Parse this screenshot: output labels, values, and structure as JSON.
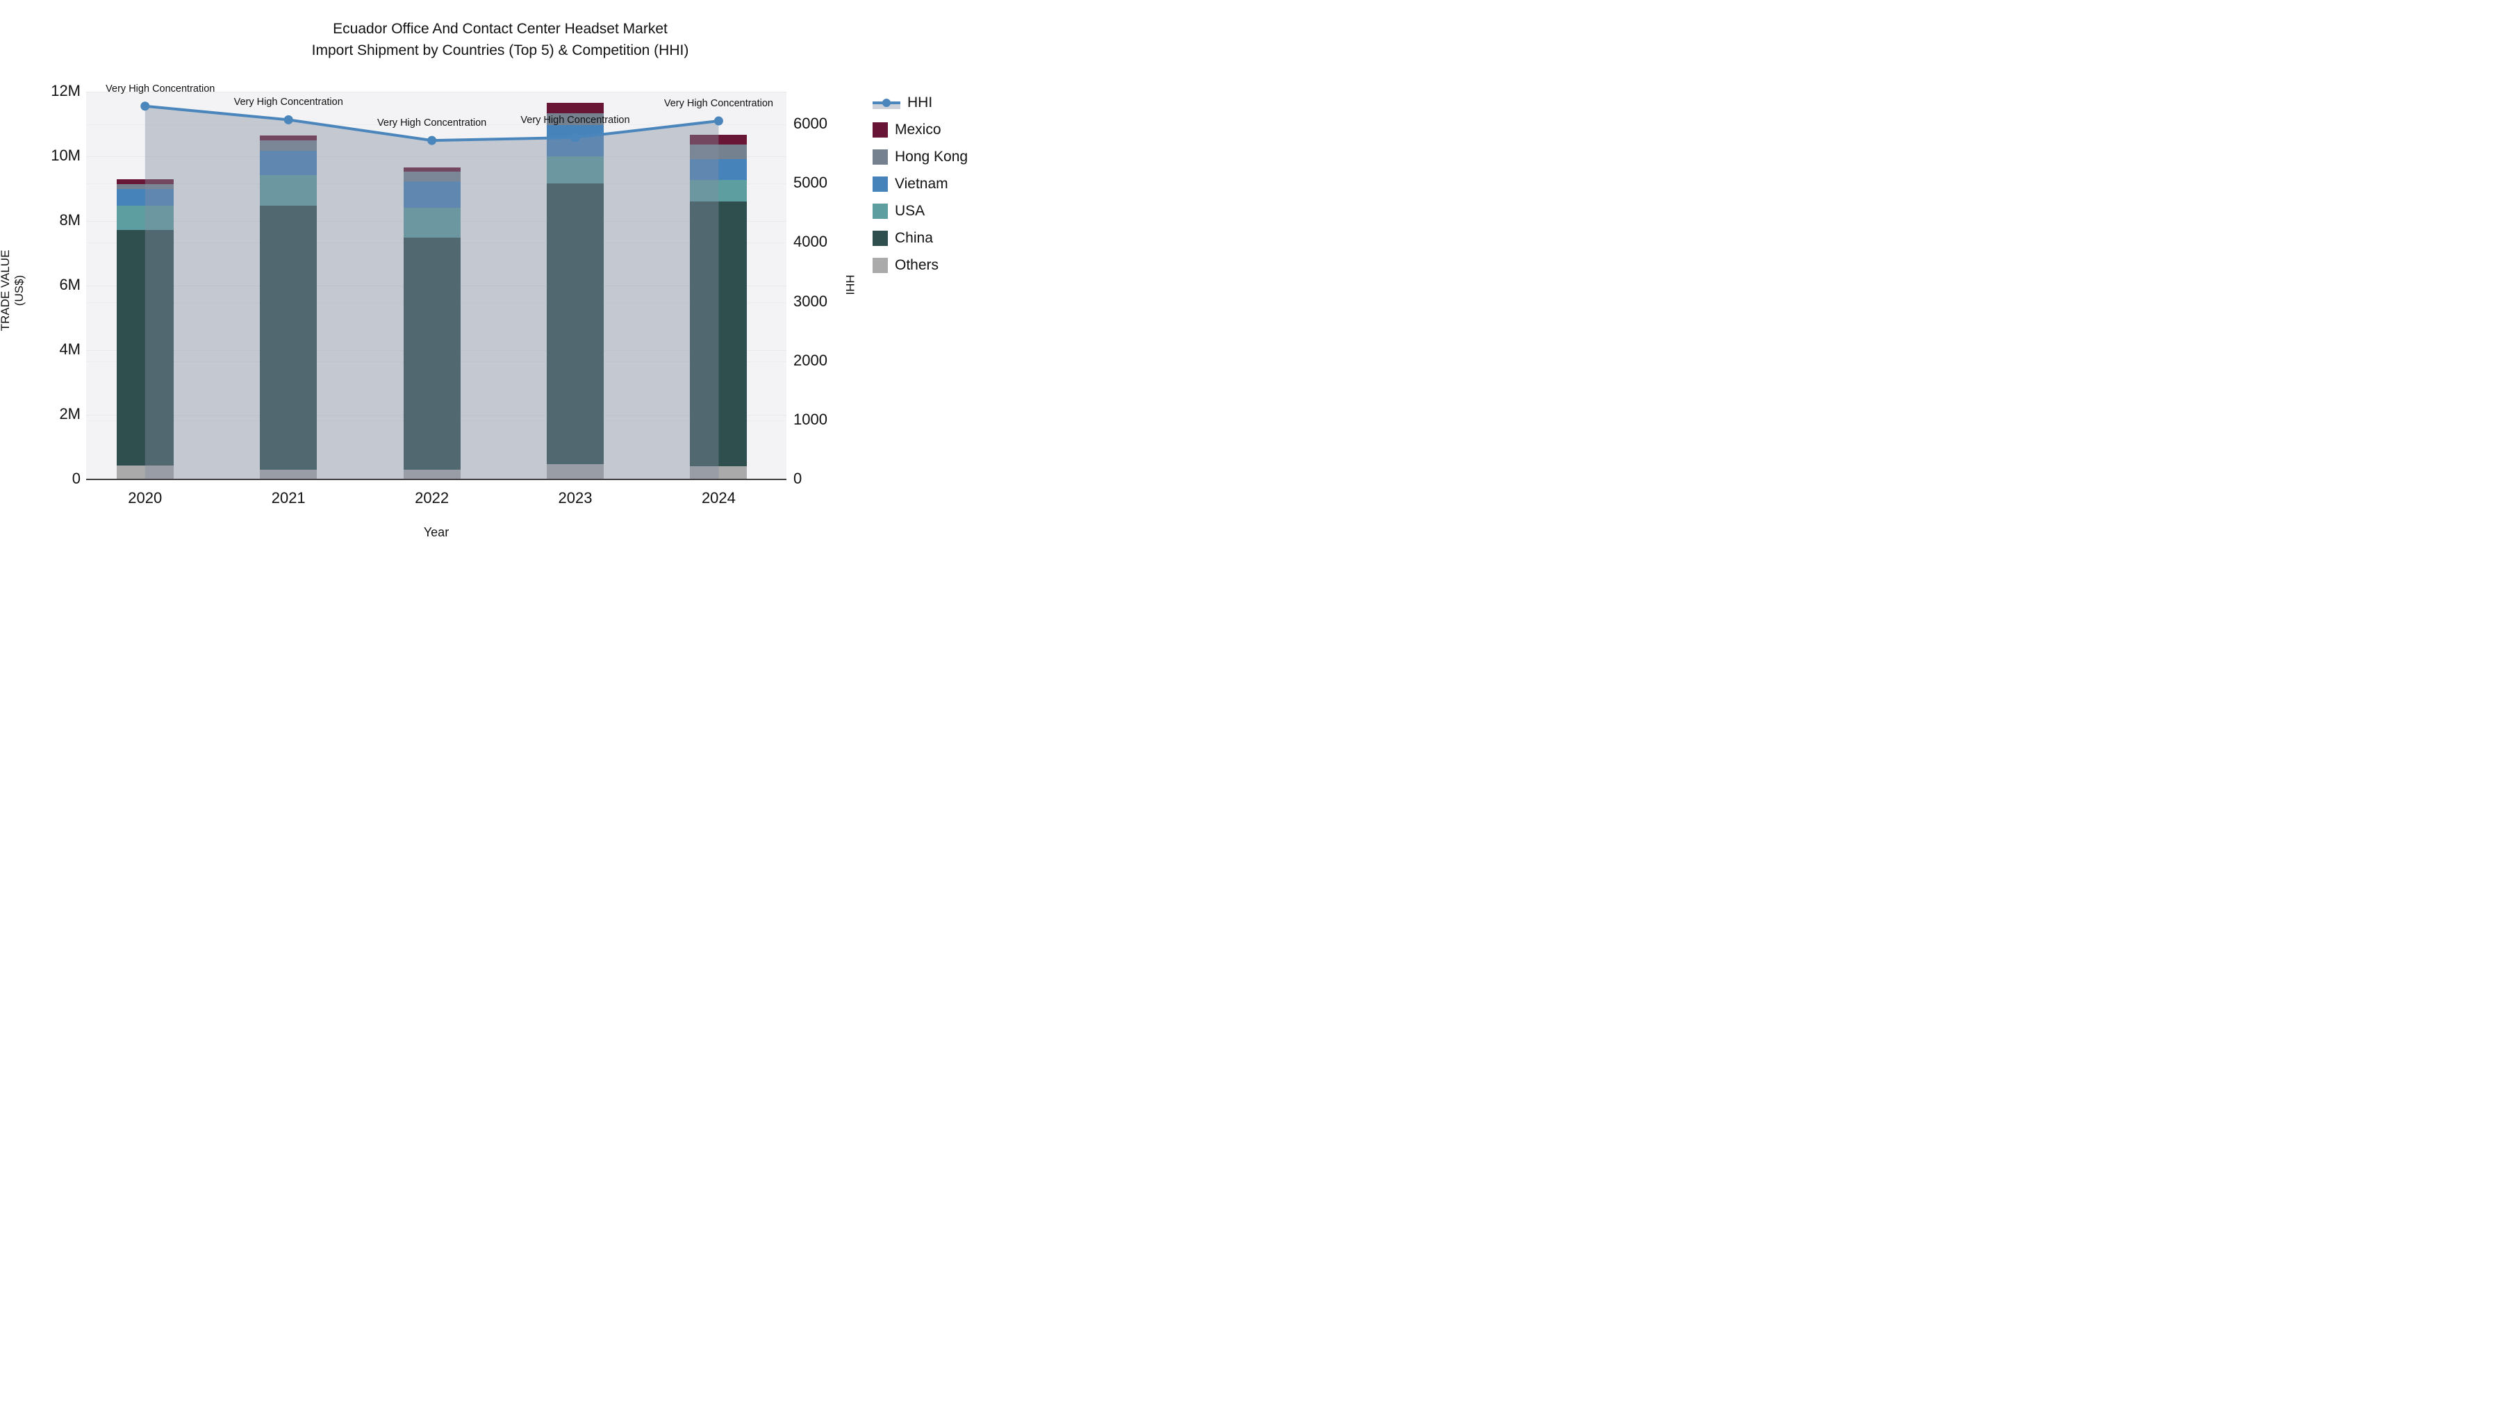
{
  "title": {
    "line1": "Ecuador Office And Contact Center Headset Market",
    "line2": "Import Shipment by Countries (Top 5) & Competition (HHI)"
  },
  "axes": {
    "x_title": "Year",
    "y_left_title": "TRADE VALUE (US$)",
    "y_right_title": "HHI",
    "y_left_ticks": [
      {
        "value_musd": 0,
        "label": "0"
      },
      {
        "value_musd": 2,
        "label": "2M"
      },
      {
        "value_musd": 4,
        "label": "4M"
      },
      {
        "value_musd": 6,
        "label": "6M"
      },
      {
        "value_musd": 8,
        "label": "8M"
      },
      {
        "value_musd": 10,
        "label": "10M"
      },
      {
        "value_musd": 12,
        "label": "12M"
      }
    ],
    "y_right_ticks": [
      {
        "value": 0,
        "label": "0"
      },
      {
        "value": 1000,
        "label": "1000"
      },
      {
        "value": 2000,
        "label": "2000"
      },
      {
        "value": 3000,
        "label": "3000"
      },
      {
        "value": 4000,
        "label": "4000"
      },
      {
        "value": 5000,
        "label": "5000"
      },
      {
        "value": 6000,
        "label": "6000"
      }
    ]
  },
  "chart_data": {
    "type": "bar",
    "subtype": "stacked-bars-with-line-area-overlay",
    "categories": [
      "2020",
      "2021",
      "2022",
      "2023",
      "2024"
    ],
    "bar_unit": "million US$",
    "ylim_left_musd": [
      0,
      12
    ],
    "ylim_right": [
      0,
      6554
    ],
    "grid": true,
    "legend_position": "right",
    "series": [
      {
        "name": "Mexico",
        "color": "#691535",
        "values_musd": [
          0.17,
          0.16,
          0.13,
          0.31,
          0.3
        ]
      },
      {
        "name": "Hong Kong",
        "color": "#76818f",
        "values_musd": [
          0.15,
          0.32,
          0.31,
          0.37,
          0.45
        ]
      },
      {
        "name": "Vietnam",
        "color": "#4583ba",
        "values_musd": [
          0.5,
          0.76,
          0.82,
          0.97,
          0.66
        ]
      },
      {
        "name": "USA",
        "color": "#5d9fa1",
        "values_musd": [
          0.76,
          0.94,
          0.92,
          0.83,
          0.65
        ]
      },
      {
        "name": "China",
        "color": "#2f4f4f",
        "values_musd": [
          7.28,
          8.16,
          7.17,
          8.69,
          8.21
        ]
      },
      {
        "name": "Others",
        "color": "#a9aaa9",
        "values_musd": [
          0.44,
          0.31,
          0.31,
          0.48,
          0.4
        ]
      }
    ],
    "stack_order_bottom_to_top": [
      "Others",
      "China",
      "USA",
      "Vietnam",
      "Hong Kong",
      "Mexico"
    ],
    "line_series": {
      "name": "HHI",
      "axis": "right",
      "color": "#4a86bc",
      "area_fill_color": "rgba(130,140,160,0.42)",
      "values": [
        6310,
        6080,
        5730,
        5780,
        6060
      ]
    },
    "annotations": [
      {
        "category": "2020",
        "text": "Very High Concentration"
      },
      {
        "category": "2021",
        "text": "Very High Concentration"
      },
      {
        "category": "2022",
        "text": "Very High Concentration"
      },
      {
        "category": "2023",
        "text": "Very High Concentration"
      },
      {
        "category": "2024",
        "text": "Very High Concentration"
      }
    ]
  },
  "legend": {
    "items": [
      "HHI",
      "Mexico",
      "Hong Kong",
      "Vietnam",
      "USA",
      "China",
      "Others"
    ]
  }
}
